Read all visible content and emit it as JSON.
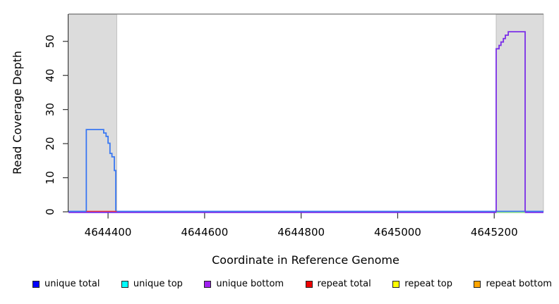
{
  "chart_data": {
    "type": "line",
    "title": "",
    "xlabel": "Coordinate in Reference Genome",
    "ylabel": "Read Coverage Depth",
    "xlim": [
      4644318,
      4645302
    ],
    "ylim": [
      0,
      58
    ],
    "x_ticks": [
      "4644400",
      "4644600",
      "4644800",
      "4645000",
      "4645200"
    ],
    "x_tick_values": [
      4644400,
      4644600,
      4644800,
      4645000,
      4645200
    ],
    "y_ticks": [
      "0",
      "10",
      "20",
      "30",
      "40",
      "50"
    ],
    "y_tick_values": [
      0,
      10,
      20,
      30,
      40,
      50
    ],
    "grid": false,
    "top_border_line": {
      "present": true,
      "color": "#8a8a8a"
    },
    "shaded_regions": [
      {
        "name": "left-shaded-region",
        "x_start": 4644318,
        "x_end": 4644418,
        "fill": "#dcdcdc",
        "stroke": "#b5b5b5"
      },
      {
        "name": "right-shaded-region",
        "x_start": 4645204,
        "x_end": 4645302,
        "fill": "#dcdcdc",
        "stroke": "#b5b5b5"
      }
    ],
    "series": [
      {
        "name": "unique total (blue coverage trace, left peak max 24)",
        "stroke": "#3A78F2",
        "points": [
          [
            4644318,
            0
          ],
          [
            4644355,
            0
          ],
          [
            4644355,
            24
          ],
          [
            4644391,
            24
          ],
          [
            4644391,
            23
          ],
          [
            4644396,
            23
          ],
          [
            4644396,
            22
          ],
          [
            4644400,
            22
          ],
          [
            4644400,
            20
          ],
          [
            4644404,
            20
          ],
          [
            4644404,
            17
          ],
          [
            4644408,
            17
          ],
          [
            4644408,
            16
          ],
          [
            4644413,
            16
          ],
          [
            4644413,
            12
          ],
          [
            4644416,
            12
          ],
          [
            4644416,
            0
          ],
          [
            4645302,
            0
          ]
        ]
      },
      {
        "name": "repeat total (red baseline segment under left peak)",
        "stroke": "#E8303E",
        "points": [
          [
            4644355,
            0
          ],
          [
            4644418,
            0
          ]
        ]
      },
      {
        "name": "unique bottom (purple coverage trace, right peak max 53)",
        "stroke": "#7B2FE8",
        "points": [
          [
            4644318,
            0
          ],
          [
            4645204,
            0
          ],
          [
            4645204,
            48
          ],
          [
            4645210,
            48
          ],
          [
            4645210,
            49
          ],
          [
            4645214,
            49
          ],
          [
            4645214,
            50
          ],
          [
            4645219,
            50
          ],
          [
            4645219,
            51
          ],
          [
            4645223,
            51
          ],
          [
            4645223,
            52
          ],
          [
            4645229,
            52
          ],
          [
            4645229,
            53
          ],
          [
            4645264,
            53
          ],
          [
            4645264,
            0
          ],
          [
            4645302,
            0
          ]
        ]
      },
      {
        "name": "green baseline segment under right peak",
        "stroke": "#86D986",
        "points": [
          [
            4645204,
            0
          ],
          [
            4645264,
            0
          ]
        ]
      }
    ],
    "legend_position": "bottom"
  },
  "legend": {
    "items": [
      {
        "label": "unique total",
        "color": "#0000FF"
      },
      {
        "label": "unique top",
        "color": "#00FFFF"
      },
      {
        "label": "unique bottom",
        "color": "#A020F0"
      },
      {
        "label": "repeat total",
        "color": "#EE0000"
      },
      {
        "label": "repeat top",
        "color": "#FFFF00"
      },
      {
        "label": "repeat bottom",
        "color": "#FFA500"
      }
    ]
  }
}
